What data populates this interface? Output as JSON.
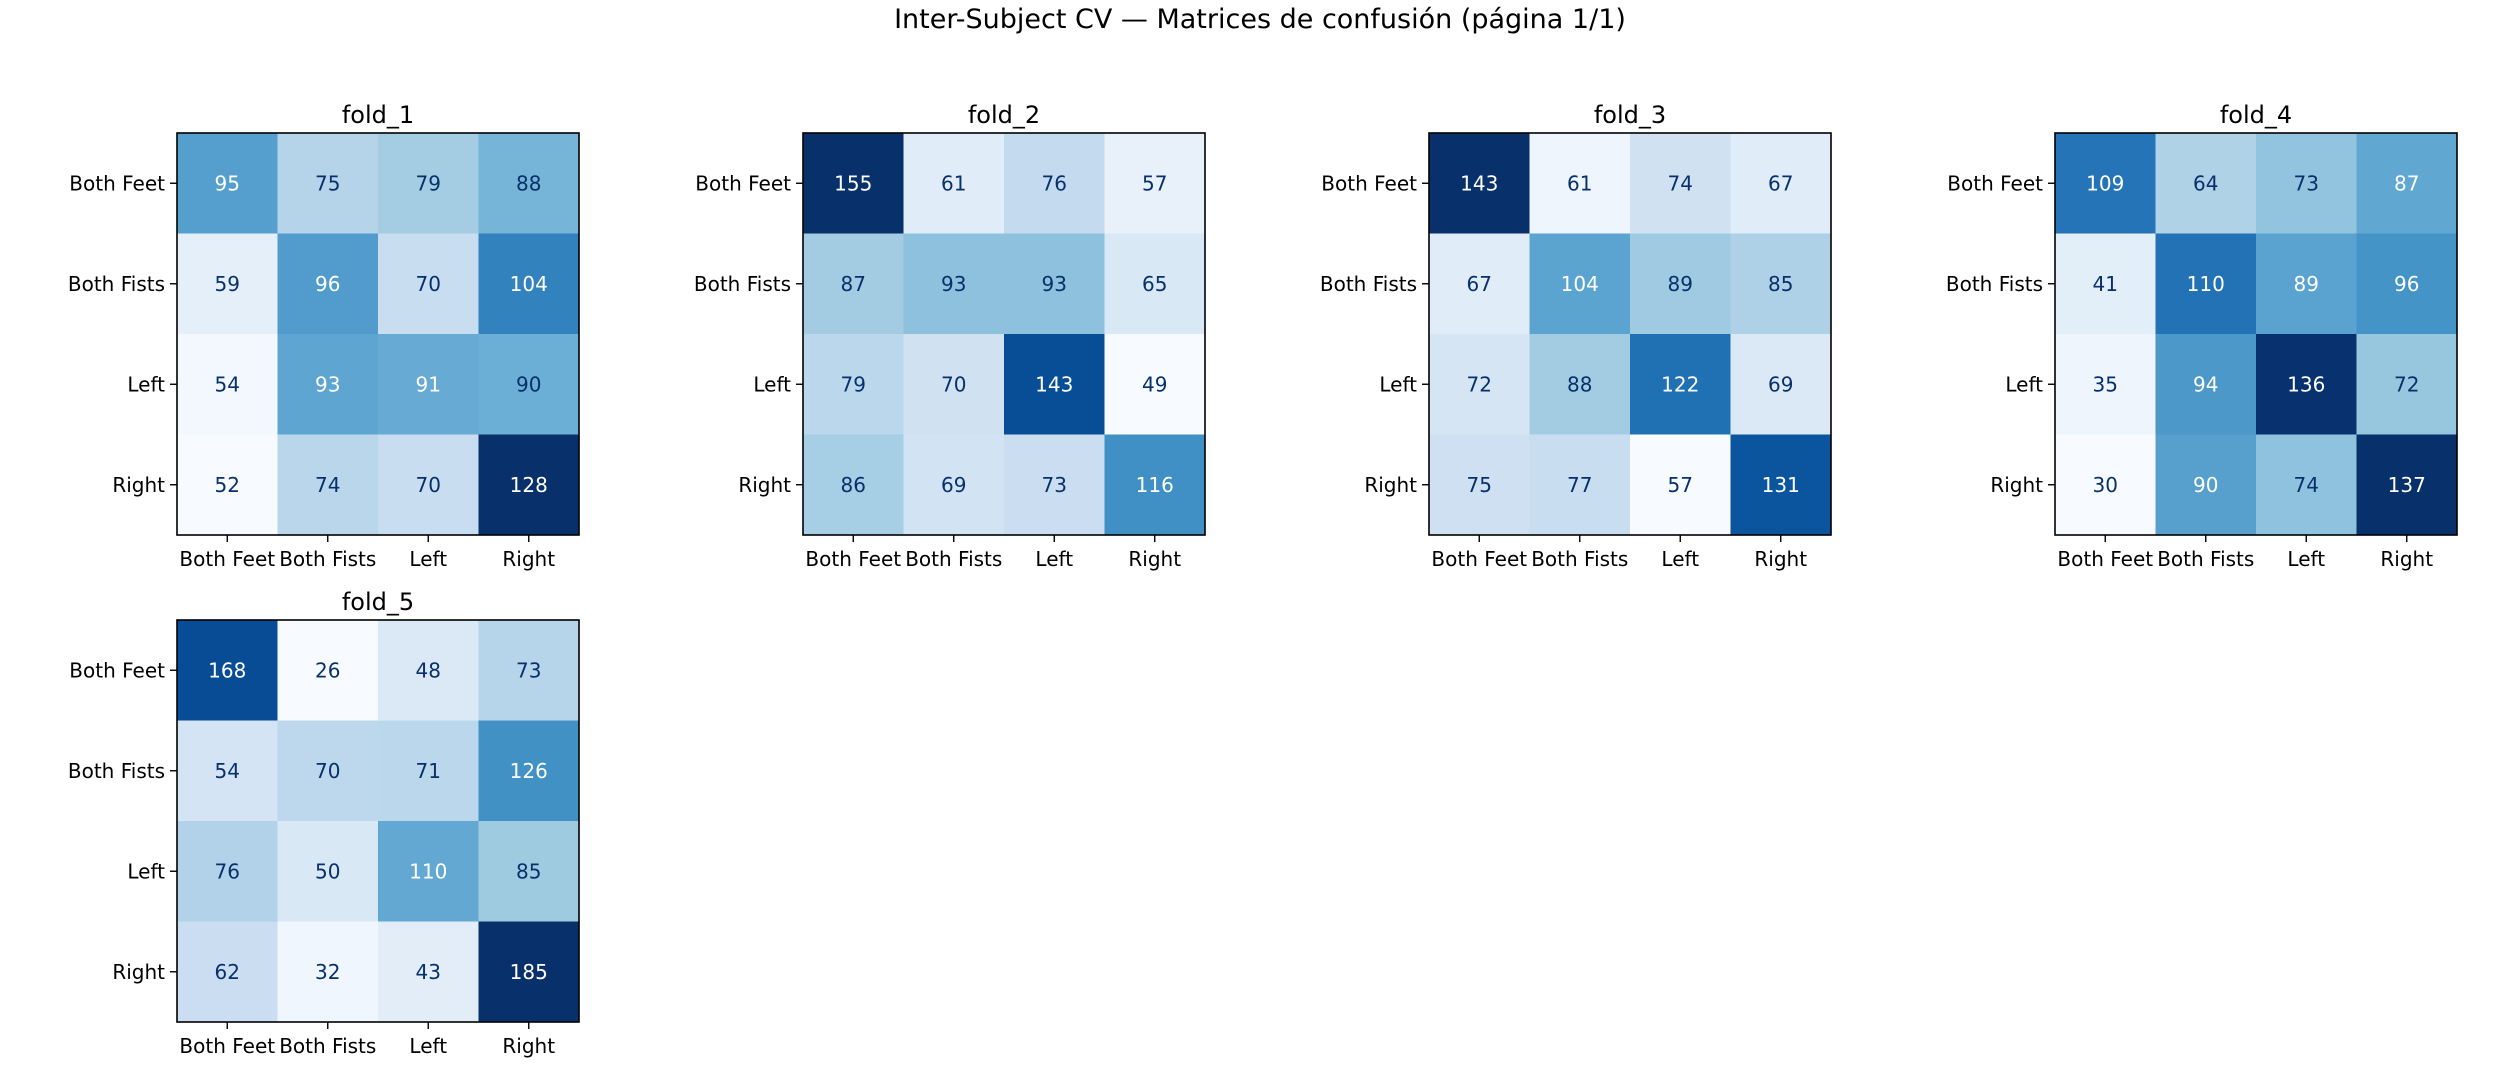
{
  "suptitle": "Inter-Subject CV — Matrices de confusión (página 1/1)",
  "chart_data": [
    {
      "type": "heatmap",
      "title": "fold_1",
      "xlabel": "",
      "ylabel": "",
      "x_categories": [
        "Both Feet",
        "Both Fists",
        "Left",
        "Right"
      ],
      "y_categories": [
        "Both Feet",
        "Both Fists",
        "Left",
        "Right"
      ],
      "values": [
        [
          95,
          75,
          79,
          88
        ],
        [
          59,
          96,
          70,
          104
        ],
        [
          54,
          93,
          91,
          90
        ],
        [
          52,
          74,
          70,
          128
        ]
      ],
      "colormap": "Blues",
      "grid": false
    },
    {
      "type": "heatmap",
      "title": "fold_2",
      "xlabel": "",
      "ylabel": "",
      "x_categories": [
        "Both Feet",
        "Both Fists",
        "Left",
        "Right"
      ],
      "y_categories": [
        "Both Feet",
        "Both Fists",
        "Left",
        "Right"
      ],
      "values": [
        [
          155,
          61,
          76,
          57
        ],
        [
          87,
          93,
          93,
          65
        ],
        [
          79,
          70,
          143,
          49
        ],
        [
          86,
          69,
          73,
          116
        ]
      ],
      "colormap": "Blues",
      "grid": false
    },
    {
      "type": "heatmap",
      "title": "fold_3",
      "xlabel": "",
      "ylabel": "",
      "x_categories": [
        "Both Feet",
        "Both Fists",
        "Left",
        "Right"
      ],
      "y_categories": [
        "Both Feet",
        "Both Fists",
        "Left",
        "Right"
      ],
      "values": [
        [
          143,
          61,
          74,
          67
        ],
        [
          67,
          104,
          89,
          85
        ],
        [
          72,
          88,
          122,
          69
        ],
        [
          75,
          77,
          57,
          131
        ]
      ],
      "colormap": "Blues",
      "grid": false
    },
    {
      "type": "heatmap",
      "title": "fold_4",
      "xlabel": "",
      "ylabel": "",
      "x_categories": [
        "Both Feet",
        "Both Fists",
        "Left",
        "Right"
      ],
      "y_categories": [
        "Both Feet",
        "Both Fists",
        "Left",
        "Right"
      ],
      "values": [
        [
          109,
          64,
          73,
          87
        ],
        [
          41,
          110,
          89,
          96
        ],
        [
          35,
          94,
          136,
          72
        ],
        [
          30,
          90,
          74,
          137
        ]
      ],
      "colormap": "Blues",
      "grid": false
    },
    {
      "type": "heatmap",
      "title": "fold_5",
      "xlabel": "",
      "ylabel": "",
      "x_categories": [
        "Both Feet",
        "Both Fists",
        "Left",
        "Right"
      ],
      "y_categories": [
        "Both Feet",
        "Both Fists",
        "Left",
        "Right"
      ],
      "values": [
        [
          168,
          26,
          48,
          73
        ],
        [
          54,
          70,
          71,
          126
        ],
        [
          76,
          50,
          110,
          85
        ],
        [
          62,
          32,
          43,
          185
        ]
      ],
      "colormap": "Blues",
      "grid": false
    }
  ]
}
